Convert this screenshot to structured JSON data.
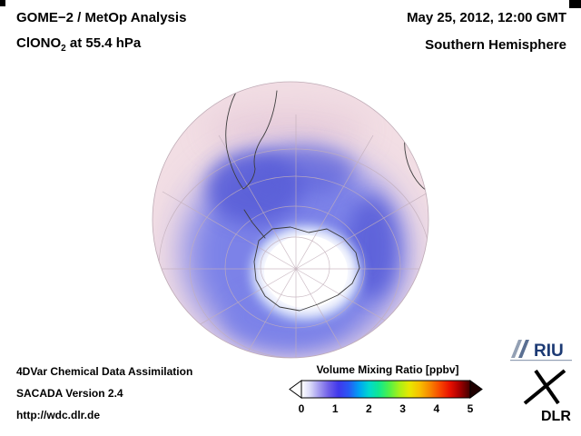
{
  "header": {
    "product_line": "GOME−2 / MetOp Analysis",
    "species_prefix": "ClONO",
    "species_sub": "2",
    "species_suffix": " at 55.4 hPa",
    "datetime": "May 25, 2012, 12:00 GMT",
    "hemisphere": "Southern Hemisphere"
  },
  "footer": {
    "line1": "4DVar Chemical Data Assimilation",
    "line2": "SACADA Version 2.4",
    "line3": "http://wdc.dlr.de"
  },
  "colorbar": {
    "title": "Volume Mixing Ratio [ppbv]",
    "ticks": [
      "0",
      "1",
      "2",
      "3",
      "4",
      "5"
    ],
    "arrow_left_color": "#ffffff",
    "arrow_right_color": "#1f0000",
    "stops": [
      {
        "o": 0.0,
        "c": "#ffffff"
      },
      {
        "o": 0.05,
        "c": "#dcdcf8"
      },
      {
        "o": 0.1,
        "c": "#a8a0f0"
      },
      {
        "o": 0.16,
        "c": "#7060e8"
      },
      {
        "o": 0.22,
        "c": "#4038ec"
      },
      {
        "o": 0.28,
        "c": "#2858f4"
      },
      {
        "o": 0.34,
        "c": "#00a0f4"
      },
      {
        "o": 0.4,
        "c": "#00d8d0"
      },
      {
        "o": 0.46,
        "c": "#10e890"
      },
      {
        "o": 0.52,
        "c": "#50f048"
      },
      {
        "o": 0.58,
        "c": "#a8f018"
      },
      {
        "o": 0.64,
        "c": "#e8e800"
      },
      {
        "o": 0.7,
        "c": "#f8c000"
      },
      {
        "o": 0.76,
        "c": "#f88800"
      },
      {
        "o": 0.82,
        "c": "#f84800"
      },
      {
        "o": 0.88,
        "c": "#e81000"
      },
      {
        "o": 0.93,
        "c": "#b00000"
      },
      {
        "o": 1.0,
        "c": "#400000"
      }
    ]
  },
  "logos": {
    "riu_text": "RIU",
    "dlr_text": "DLR",
    "riu_color": "#1c3a74",
    "dlr_color": "#000000"
  },
  "globe_colors": {
    "base": "#f2dee4",
    "pink_shade": "#e6cbd9",
    "lavender": "#b9aee8",
    "blue_mid": "#7b82e8",
    "blue_deep": "#5a5fd8",
    "blue_light": "#a6b6f2",
    "core_white": "#ffffff",
    "graticule": "#c2afba",
    "coast": "#3c3c3c",
    "limb": "#bfabb6"
  },
  "chart_data": {
    "type": "heatmap",
    "title": "GOME−2 / MetOp Analysis — ClONO2 at 55.4 hPa",
    "datetime": "May 25, 2012, 12:00 GMT",
    "projection": "orthographic globe view of the Southern Hemisphere (South Pole near center)",
    "variable": "ClONO2 volume mixing ratio",
    "units": "ppbv",
    "colorbar_label": "Volume Mixing Ratio [ppbv]",
    "range": [
      0,
      5
    ],
    "tick_values": [
      0,
      1,
      2,
      3,
      4,
      5
    ],
    "legend_position": "bottom center, horizontal arrow-ended colorbar",
    "grid": "latitude/longitude graticule over the globe",
    "regions": [
      {
        "area": "tropics and mid-latitudes (outer part of disc)",
        "approx_value_ppbv": 0.2,
        "rendered_color": "pale pink"
      },
      {
        "area": "polar vortex collar ring (~55°S–75°S), widest toward South America sector",
        "approx_value_ppbv": 1.4,
        "rendered_color": "blue"
      },
      {
        "area": "Antarctic interior (polar night, no retrieval)",
        "approx_value_ppbv": 0.0,
        "rendered_color": "white"
      }
    ],
    "visible_landmasses": [
      "South America (southern cone)",
      "southern Africa",
      "Antarctica with peninsula"
    ]
  }
}
